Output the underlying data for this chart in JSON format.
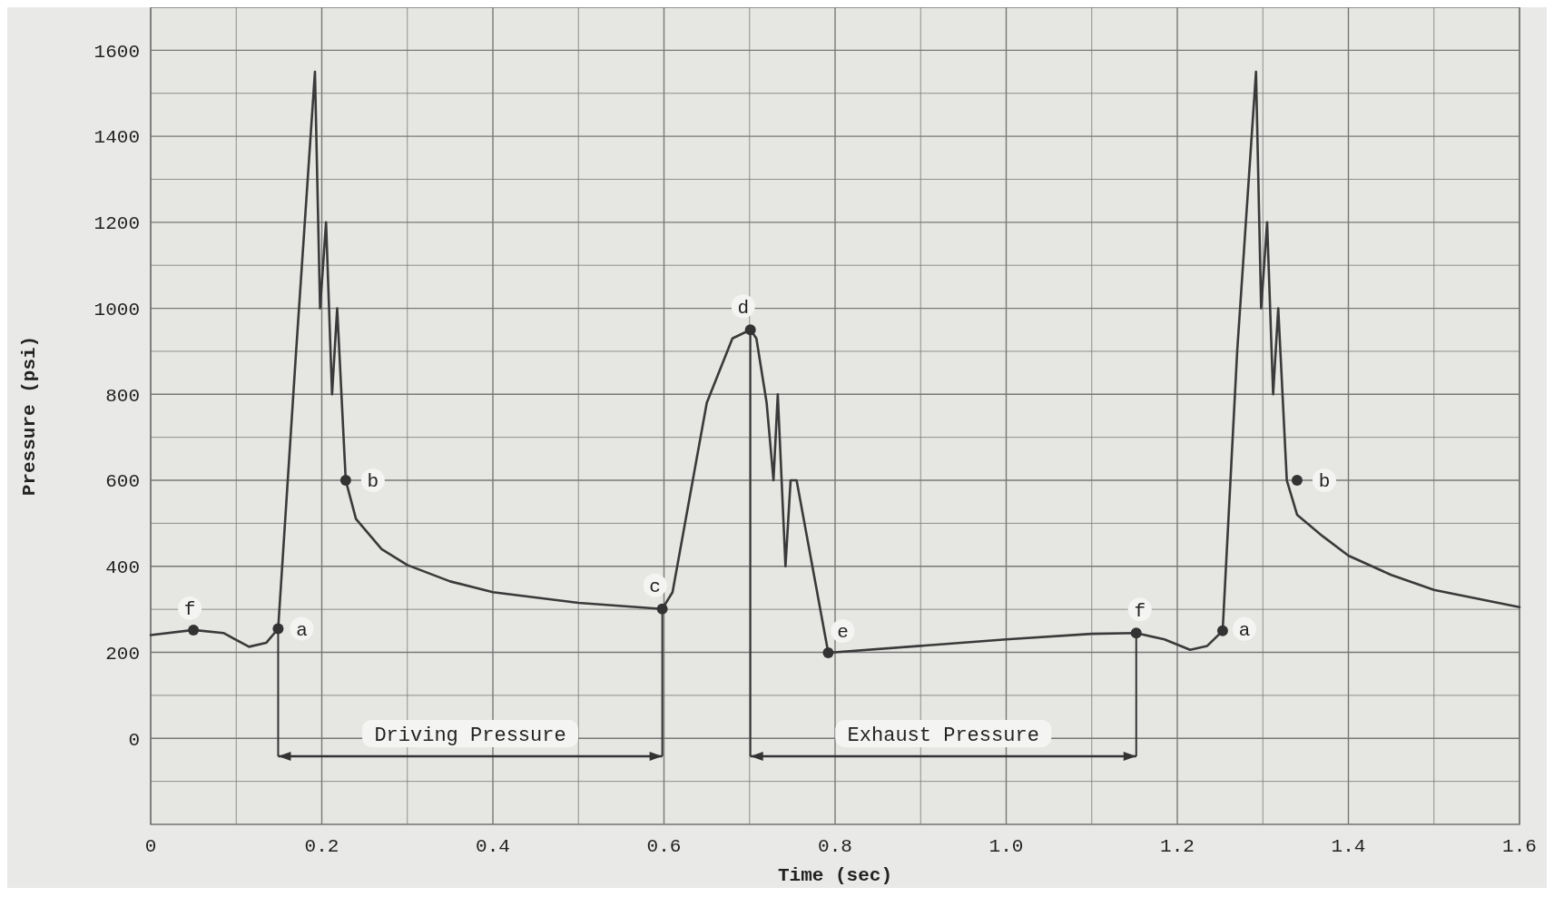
{
  "chart_data": {
    "type": "line",
    "xlabel": "Time (sec)",
    "ylabel": "Pressure (psi)",
    "xlim": [
      0,
      1.6
    ],
    "ylim": [
      -200,
      1700
    ],
    "xticks": [
      0,
      {
        "value": 0.1,
        "label": null
      },
      0.2,
      {
        "value": 0.3,
        "label": null
      },
      0.4,
      {
        "value": 0.5,
        "label": null
      },
      0.6,
      {
        "value": 0.7,
        "label": null
      },
      0.8,
      {
        "value": 0.9,
        "label": null
      },
      {
        "value": 1.0,
        "label": "1.0"
      },
      {
        "value": 1.1,
        "label": null
      },
      1.2,
      {
        "value": 1.3,
        "label": null
      },
      1.4,
      {
        "value": 1.5,
        "label": null
      },
      1.6
    ],
    "yticks": [
      {
        "value": -100,
        "label": null
      },
      0,
      {
        "value": 100,
        "label": null
      },
      200,
      {
        "value": 300,
        "label": null
      },
      400,
      {
        "value": 500,
        "label": null
      },
      600,
      {
        "value": 700,
        "label": null
      },
      800,
      {
        "value": 900,
        "label": null
      },
      1000,
      {
        "value": 1100,
        "label": null
      },
      1200,
      {
        "value": 1300,
        "label": null
      },
      1400,
      {
        "value": 1500,
        "label": null
      },
      1600
    ],
    "grid": true,
    "marker": "none",
    "line_style": "solid",
    "series": [
      {
        "color": "#3a3a3a",
        "x": [
          0,
          0.05,
          0.085,
          0.115,
          0.135,
          0.149,
          0.17,
          0.192,
          0.198,
          0.205,
          0.212,
          0.218,
          0.228,
          0.24,
          0.27,
          0.3,
          0.35,
          0.4,
          0.5,
          0.598,
          0.61,
          0.63,
          0.65,
          0.68,
          0.701,
          0.708,
          0.72,
          0.728,
          0.733,
          0.742,
          0.748,
          0.755,
          0.792,
          0.9,
          1.0,
          1.1,
          1.152,
          1.185,
          1.215,
          1.235,
          1.253,
          1.27,
          1.292,
          1.298,
          1.305,
          1.312,
          1.318,
          1.328,
          1.34,
          1.37,
          1.4,
          1.45,
          1.5,
          1.6
        ],
        "values": [
          240,
          252,
          245,
          213,
          222,
          255,
          900,
          1550,
          1000,
          1200,
          800,
          1000,
          600,
          510,
          440,
          403,
          365,
          340,
          315,
          301,
          340,
          560,
          780,
          930,
          950,
          930,
          780,
          600,
          800,
          400,
          600,
          600,
          199,
          215,
          230,
          243,
          245,
          230,
          206,
          215,
          250,
          900,
          1550,
          1000,
          1200,
          800,
          1000,
          600,
          520,
          470,
          425,
          380,
          345,
          305
        ]
      }
    ],
    "annotations": [
      {
        "text": "f",
        "x": 0.05,
        "y": 252
      },
      {
        "text": "a",
        "x": 0.149,
        "y": 255
      },
      {
        "text": "b",
        "x": 0.228,
        "y": 600
      },
      {
        "text": "c",
        "x": 0.598,
        "y": 301
      },
      {
        "text": "d",
        "x": 0.701,
        "y": 950
      },
      {
        "text": "e",
        "x": 0.792,
        "y": 199
      },
      {
        "text": "f",
        "x": 1.152,
        "y": 245
      },
      {
        "text": "a",
        "x": 1.253,
        "y": 250
      },
      {
        "text": "b",
        "x": 1.34,
        "y": 600
      },
      "Driving Pressure",
      "Exhaust Pressure"
    ]
  }
}
